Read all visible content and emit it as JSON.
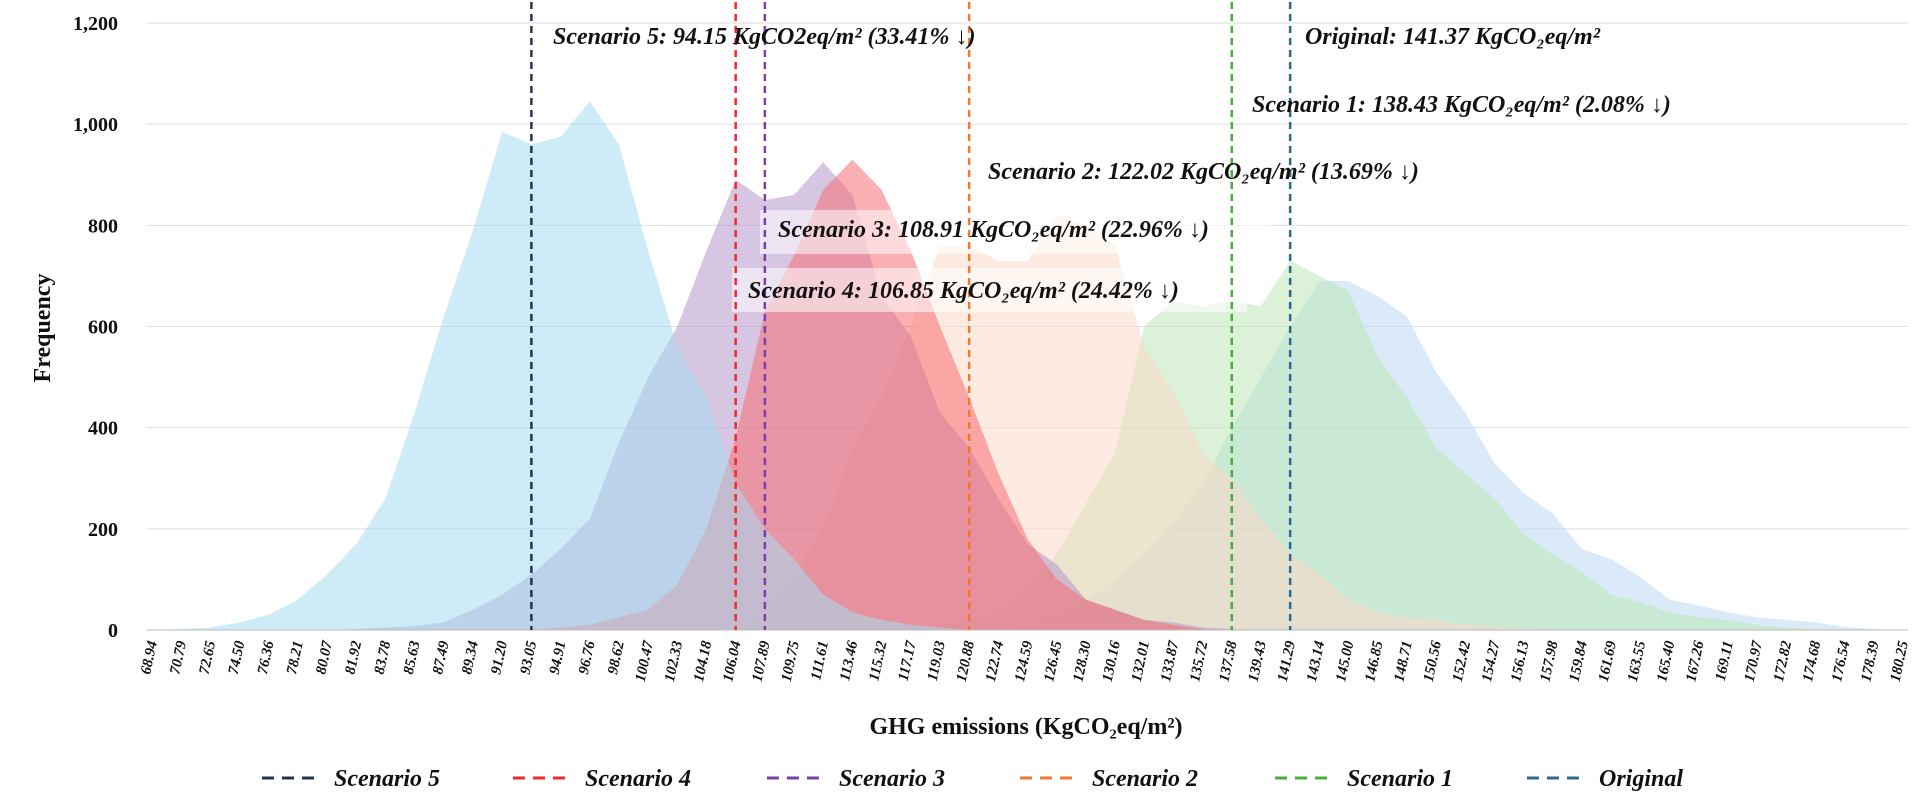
{
  "chart_data": {
    "type": "area",
    "xlabel": "GHG emissions (KgCO₂eq/m²)",
    "ylabel": "Frequency",
    "ylim": [
      0,
      1200
    ],
    "yticks": [
      0,
      200,
      400,
      600,
      800,
      1000,
      1200
    ],
    "ytick_labels": [
      "0",
      "200",
      "400",
      "600",
      "800",
      "1,000",
      "1,200"
    ],
    "grid": "horizontal",
    "legend_position": "bottom",
    "categories": [
      "68.94",
      "70.79",
      "72.65",
      "74.50",
      "76.36",
      "78.21",
      "80.07",
      "81.92",
      "83.78",
      "85.63",
      "87.49",
      "89.34",
      "91.20",
      "93.05",
      "94.91",
      "96.76",
      "98.62",
      "100.47",
      "102.33",
      "104.18",
      "106.04",
      "107.89",
      "109.75",
      "111.61",
      "113.46",
      "115.32",
      "117.17",
      "119.03",
      "120.88",
      "122.74",
      "124.59",
      "126.45",
      "128.30",
      "130.16",
      "132.01",
      "133.87",
      "135.72",
      "137.58",
      "139.43",
      "141.29",
      "143.14",
      "145.00",
      "146.85",
      "148.71",
      "150.56",
      "152.42",
      "154.27",
      "156.13",
      "157.98",
      "159.84",
      "161.69",
      "163.55",
      "165.40",
      "167.26",
      "169.11",
      "170.97",
      "172.82",
      "174.68",
      "176.54",
      "178.39",
      "180.25"
    ],
    "series": [
      {
        "name": "Original",
        "color": "#bcd8f2",
        "values": [
          0,
          0,
          0,
          0,
          0,
          0,
          0,
          0,
          0,
          0,
          0,
          0,
          0,
          0,
          0,
          0,
          0,
          0,
          0,
          0,
          0,
          0,
          0,
          0,
          0,
          0,
          0,
          0,
          0,
          0,
          10,
          30,
          55,
          100,
          150,
          210,
          290,
          400,
          500,
          600,
          690,
          690,
          660,
          620,
          510,
          430,
          330,
          270,
          230,
          160,
          140,
          105,
          60,
          48,
          35,
          25,
          20,
          15,
          6,
          2,
          0
        ]
      },
      {
        "name": "Scenario 1",
        "color": "#bde7b8",
        "values": [
          0,
          0,
          0,
          0,
          0,
          0,
          0,
          0,
          0,
          0,
          0,
          0,
          0,
          0,
          0,
          0,
          0,
          0,
          0,
          0,
          0,
          0,
          0,
          0,
          0,
          0,
          0,
          10,
          20,
          40,
          80,
          150,
          250,
          350,
          600,
          650,
          640,
          650,
          640,
          730,
          700,
          670,
          540,
          460,
          360,
          310,
          260,
          190,
          150,
          115,
          70,
          55,
          35,
          25,
          20,
          10,
          5,
          2,
          0,
          0,
          0
        ]
      },
      {
        "name": "Scenario 2",
        "color": "#fbd9c6",
        "values": [
          0,
          0,
          0,
          0,
          0,
          0,
          0,
          0,
          0,
          0,
          0,
          0,
          0,
          0,
          0,
          0,
          0,
          0,
          0,
          0,
          0,
          50,
          110,
          200,
          360,
          460,
          600,
          760,
          760,
          730,
          730,
          820,
          800,
          760,
          560,
          470,
          350,
          300,
          220,
          150,
          110,
          60,
          35,
          25,
          20,
          10,
          8,
          3,
          0,
          0,
          0,
          0,
          0,
          0,
          0,
          0,
          0,
          0,
          0,
          0,
          0
        ]
      },
      {
        "name": "Scenario 3",
        "color": "#b797cb",
        "values": [
          0,
          0,
          0,
          0,
          0,
          0,
          0,
          2,
          5,
          8,
          15,
          40,
          70,
          110,
          160,
          220,
          370,
          500,
          600,
          750,
          890,
          850,
          860,
          925,
          860,
          660,
          580,
          430,
          360,
          260,
          170,
          130,
          60,
          40,
          20,
          15,
          5,
          2,
          0,
          0,
          0,
          0,
          0,
          0,
          0,
          0,
          0,
          0,
          0,
          0,
          0,
          0,
          0,
          0,
          0,
          0,
          0,
          0,
          0,
          0,
          0
        ]
      },
      {
        "name": "Scenario 4",
        "color": "#f56d72",
        "values": [
          0,
          0,
          0,
          0,
          0,
          0,
          0,
          0,
          0,
          0,
          0,
          0,
          0,
          0,
          5,
          10,
          25,
          40,
          90,
          200,
          380,
          630,
          740,
          870,
          930,
          870,
          750,
          600,
          460,
          310,
          180,
          100,
          60,
          40,
          20,
          10,
          2,
          0,
          0,
          0,
          0,
          0,
          0,
          0,
          0,
          0,
          0,
          0,
          0,
          0,
          0,
          0,
          0,
          0,
          0,
          0,
          0,
          0,
          0,
          0,
          0
        ]
      },
      {
        "name": "Scenario 5",
        "color": "#a6dcf0",
        "values": [
          0,
          2,
          5,
          15,
          30,
          60,
          110,
          170,
          260,
          430,
          620,
          790,
          985,
          960,
          975,
          1045,
          960,
          750,
          560,
          460,
          290,
          200,
          140,
          70,
          35,
          20,
          10,
          5,
          0,
          0,
          0,
          0,
          0,
          0,
          0,
          0,
          0,
          0,
          0,
          0,
          0,
          0,
          0,
          0,
          0,
          0,
          0,
          0,
          0,
          0,
          0,
          0,
          0,
          0,
          0,
          0,
          0,
          0,
          0,
          0,
          0
        ]
      }
    ],
    "markers": [
      {
        "name": "Scenario 5",
        "x": 93.05,
        "color": "#1f3552"
      },
      {
        "name": "Scenario 4",
        "x": 106.04,
        "color": "#f22a2a"
      },
      {
        "name": "Scenario 3",
        "x": 107.89,
        "color": "#7b3fa6"
      },
      {
        "name": "Scenario 2",
        "x": 120.88,
        "color": "#ef7a2c"
      },
      {
        "name": "Scenario 1",
        "x": 137.58,
        "color": "#4aac3c"
      },
      {
        "name": "Original",
        "x": 141.29,
        "color": "#2b6a8f"
      }
    ],
    "annotations": [
      {
        "id": "s5",
        "text": "Scenario 5: 94.15 KgCO2eq/m² (33.41% ↓)"
      },
      {
        "id": "orig",
        "text": "Original: 141.37 KgCO₂eq/m²"
      },
      {
        "id": "s1",
        "text": "Scenario 1: 138.43 KgCO₂eq/m² (2.08% ↓)"
      },
      {
        "id": "s2",
        "text": "Scenario 2: 122.02 KgCO₂eq/m² (13.69% ↓)"
      },
      {
        "id": "s3",
        "text": "Scenario 3: 108.91 KgCO₂eq/m² (22.96%   ↓)"
      },
      {
        "id": "s4",
        "text": "Scenario 4: 106.85 KgCO₂eq/m² (24.42% ↓)"
      }
    ],
    "legend": [
      "Scenario 5",
      "Scenario 4",
      "Scenario 3",
      "Scenario 2",
      "Scenario 1",
      "Original"
    ]
  }
}
